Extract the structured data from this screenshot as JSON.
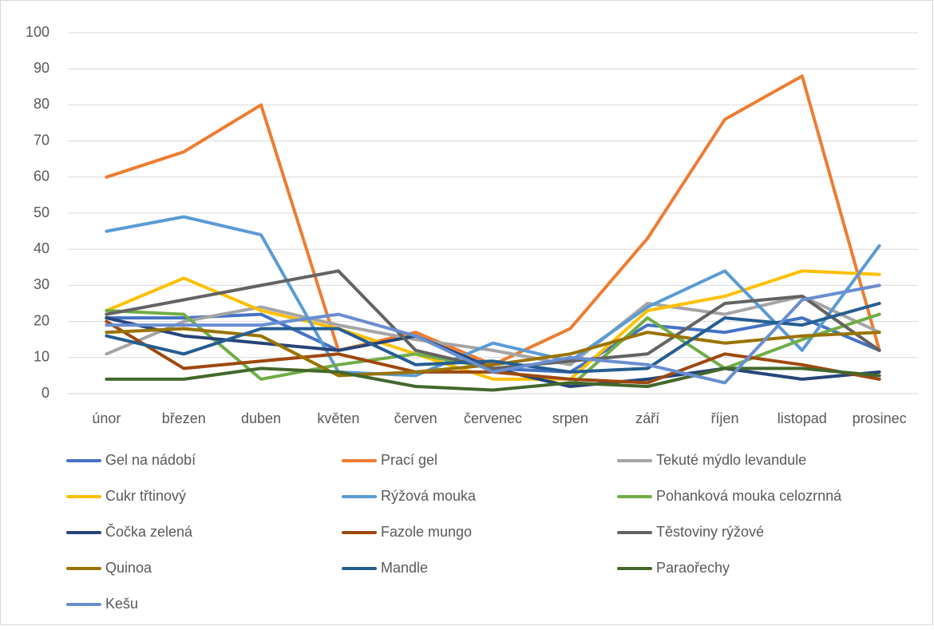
{
  "chart_data": {
    "type": "line",
    "categories": [
      "únor",
      "březen",
      "duben",
      "květen",
      "červen",
      "červenec",
      "srpen",
      "září",
      "říjen",
      "listopad",
      "prosinec"
    ],
    "ylim": [
      0,
      100
    ],
    "yticks": [
      0,
      10,
      20,
      30,
      40,
      50,
      60,
      70,
      80,
      90,
      100
    ],
    "grid": true,
    "legend": "bottom",
    "series": [
      {
        "name": "Gel na nádobí",
        "color": "#4472c4",
        "values": [
          21,
          21,
          22,
          12,
          16,
          7,
          6,
          19,
          17,
          21,
          12
        ]
      },
      {
        "name": "Prací gel",
        "color": "#ed7d31",
        "values": [
          60,
          67,
          80,
          12,
          17,
          8,
          18,
          43,
          76,
          88,
          12
        ]
      },
      {
        "name": "Tekuté mýdlo levandule",
        "color": "#a5a5a5",
        "values": [
          11,
          20,
          24,
          19,
          15,
          12,
          8,
          25,
          22,
          27,
          17
        ]
      },
      {
        "name": "Cukr třtinový",
        "color": "#ffc000",
        "values": [
          23,
          32,
          23,
          18,
          11,
          4,
          4,
          23,
          27,
          34,
          33
        ]
      },
      {
        "name": "Rýžová mouka",
        "color": "#5b9bd5",
        "values": [
          45,
          49,
          44,
          6,
          5,
          14,
          9,
          24,
          34,
          12,
          41
        ]
      },
      {
        "name": "Pohanková mouka celozrnná",
        "color": "#70ad47",
        "values": [
          23,
          22,
          4,
          8,
          11,
          7,
          2,
          21,
          7,
          15,
          22
        ]
      },
      {
        "name": "Čočka zelená",
        "color": "#264478",
        "values": [
          21,
          16,
          14,
          12,
          16,
          7,
          2,
          4,
          7,
          4,
          6
        ]
      },
      {
        "name": "Fazole mungo",
        "color": "#9e480e",
        "values": [
          20,
          7,
          9,
          11,
          6,
          6,
          4,
          3,
          11,
          8,
          4
        ]
      },
      {
        "name": "Těstoviny rýžové",
        "color": "#636363",
        "values": [
          22,
          26,
          30,
          34,
          12,
          7,
          9,
          11,
          25,
          27,
          12
        ]
      },
      {
        "name": "Quinoa",
        "color": "#997300",
        "values": [
          17,
          18,
          16,
          5,
          6,
          8,
          11,
          17,
          14,
          16,
          17
        ]
      },
      {
        "name": "Mandle",
        "color": "#255e91",
        "values": [
          16,
          11,
          18,
          18,
          8,
          9,
          6,
          7,
          21,
          19,
          25
        ]
      },
      {
        "name": "Paraořechy",
        "color": "#43682b",
        "values": [
          4,
          4,
          7,
          6,
          2,
          1,
          3,
          2,
          7,
          7,
          5
        ]
      },
      {
        "name": "Kešu",
        "color": "#698ed0",
        "values": [
          19,
          19,
          19,
          22,
          16,
          6,
          10,
          8,
          3,
          26,
          30
        ]
      }
    ]
  }
}
